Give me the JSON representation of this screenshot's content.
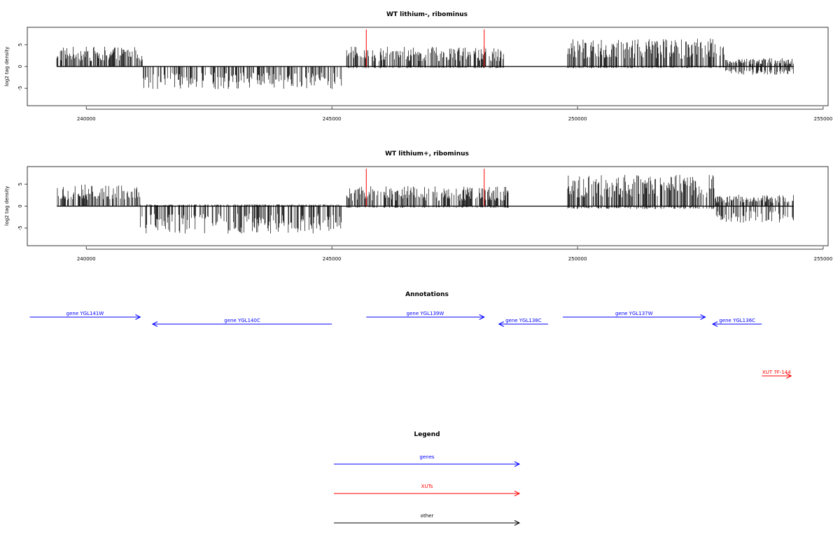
{
  "colors": {
    "density": "#000000",
    "marker": "#ff0000",
    "gene": "#0000ff",
    "xut": "#ff0000",
    "other": "#000000"
  },
  "chart_data": [
    {
      "type": "bar",
      "title": "WT lithium-, ribominus",
      "ylabel": "log2 tag density",
      "xlim": [
        238800,
        255100
      ],
      "ylim": [
        -9,
        9
      ],
      "xticks": [
        240000,
        245000,
        250000,
        255000
      ],
      "yticks": [
        -5,
        0,
        5
      ],
      "baseline_range": [
        239400,
        254400
      ],
      "markers": [
        245700,
        248100
      ],
      "profile": [
        {
          "range": [
            239400,
            241150
          ],
          "plus": 3.5,
          "minus": 0
        },
        {
          "range": [
            241150,
            245200
          ],
          "plus": 0,
          "minus": 4.0
        },
        {
          "range": [
            245300,
            248500
          ],
          "plus": 3.5,
          "minus": 0.3
        },
        {
          "range": [
            248500,
            249800
          ],
          "plus": 0,
          "minus": 0
        },
        {
          "range": [
            249800,
            253000
          ],
          "plus": 5.0,
          "minus": 0.3
        },
        {
          "range": [
            253000,
            254400
          ],
          "plus": 1.5,
          "minus": 1.5
        }
      ]
    },
    {
      "type": "bar",
      "title": "WT lithium+, ribominus",
      "ylabel": "log2 tag density",
      "xlim": [
        238800,
        255100
      ],
      "ylim": [
        -9,
        9
      ],
      "xticks": [
        240000,
        245000,
        250000,
        255000
      ],
      "yticks": [
        -5,
        0,
        5
      ],
      "baseline_range": [
        239400,
        254400
      ],
      "markers": [
        245700,
        248100
      ],
      "profile": [
        {
          "range": [
            239400,
            241100
          ],
          "plus": 3.8,
          "minus": 0
        },
        {
          "range": [
            241100,
            245200
          ],
          "plus": 0.3,
          "minus": 4.8
        },
        {
          "range": [
            245300,
            248600
          ],
          "plus": 3.5,
          "minus": 0.3
        },
        {
          "range": [
            248600,
            249800
          ],
          "plus": 0,
          "minus": 0
        },
        {
          "range": [
            249800,
            252800
          ],
          "plus": 5.5,
          "minus": 0.5
        },
        {
          "range": [
            252800,
            254400
          ],
          "plus": 2.0,
          "minus": 3.0
        }
      ]
    }
  ],
  "annotations": {
    "title": "Annotations",
    "items": [
      {
        "label": "gene YGL141W",
        "kind": "gene",
        "strand": "+",
        "start": 238850,
        "end": 241100
      },
      {
        "label": "gene YGL140C",
        "kind": "gene",
        "strand": "-",
        "start": 241350,
        "end": 245000
      },
      {
        "label": "gene YGL139W",
        "kind": "gene",
        "strand": "+",
        "start": 245700,
        "end": 248100
      },
      {
        "label": "gene YGL138C",
        "kind": "gene",
        "strand": "-",
        "start": 248400,
        "end": 249400
      },
      {
        "label": "gene YGL137W",
        "kind": "gene",
        "strand": "+",
        "start": 249700,
        "end": 252600
      },
      {
        "label": "gene YGL136C",
        "kind": "gene",
        "strand": "-",
        "start": 252750,
        "end": 253750
      },
      {
        "label": "XUT 7F-144",
        "kind": "xut",
        "strand": "+",
        "start": 253750,
        "end": 254350
      }
    ]
  },
  "legend": {
    "title": "Legend",
    "items": [
      {
        "label": "genes",
        "kind": "gene"
      },
      {
        "label": "XUTs",
        "kind": "xut"
      },
      {
        "label": "other",
        "kind": "other"
      }
    ]
  }
}
